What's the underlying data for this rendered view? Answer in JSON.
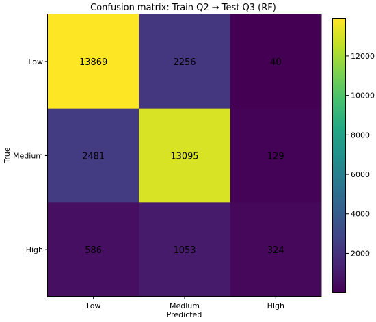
{
  "chart_data": {
    "type": "heatmap",
    "title": "Confusion matrix: Train Q2 → Test Q3 (RF)",
    "xlabel": "Predicted",
    "ylabel": "True",
    "x_categories": [
      "Low",
      "Medium",
      "High"
    ],
    "y_categories": [
      "Low",
      "Medium",
      "High"
    ],
    "values": [
      [
        13869,
        2256,
        40
      ],
      [
        2481,
        13095,
        129
      ],
      [
        586,
        1053,
        324
      ]
    ],
    "colormap": "viridis",
    "color_range": [
      40,
      13869
    ],
    "colorbar_ticks": [
      2000,
      4000,
      6000,
      8000,
      10000,
      12000
    ],
    "annotation_dark_color": "#000000"
  }
}
